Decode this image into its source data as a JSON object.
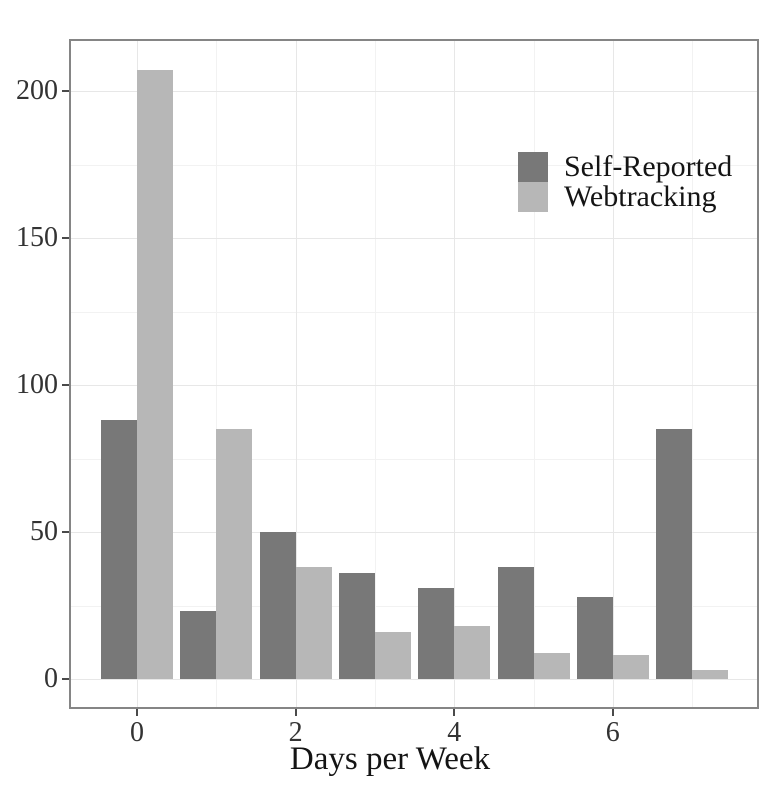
{
  "chart_data": {
    "type": "bar",
    "title": "",
    "xlabel": "Days per Week",
    "ylabel": "",
    "categories": [
      "0",
      "1",
      "2",
      "3",
      "4",
      "5",
      "6",
      "7"
    ],
    "series": [
      {
        "name": "Self-Reported",
        "color": "#787878",
        "values": [
          88,
          23,
          50,
          36,
          31,
          38,
          28,
          85
        ]
      },
      {
        "name": "Webtracking",
        "color": "#b7b7b7",
        "values": [
          207,
          85,
          38,
          16,
          18,
          9,
          8,
          3
        ]
      }
    ],
    "y_axis": {
      "ticks": [
        0,
        50,
        100,
        150,
        200
      ],
      "minor_gridlines": [
        25,
        75,
        125,
        175
      ],
      "ylim": [
        -10,
        218
      ]
    },
    "x_axis": {
      "ticks": [
        0,
        2,
        4,
        6
      ],
      "minor_gridlines": [
        1,
        3,
        5,
        7
      ],
      "xlim": [
        -0.9,
        7.8
      ]
    },
    "legend_position": "top-right-inside",
    "grid": true,
    "bar_mode": "grouped"
  }
}
